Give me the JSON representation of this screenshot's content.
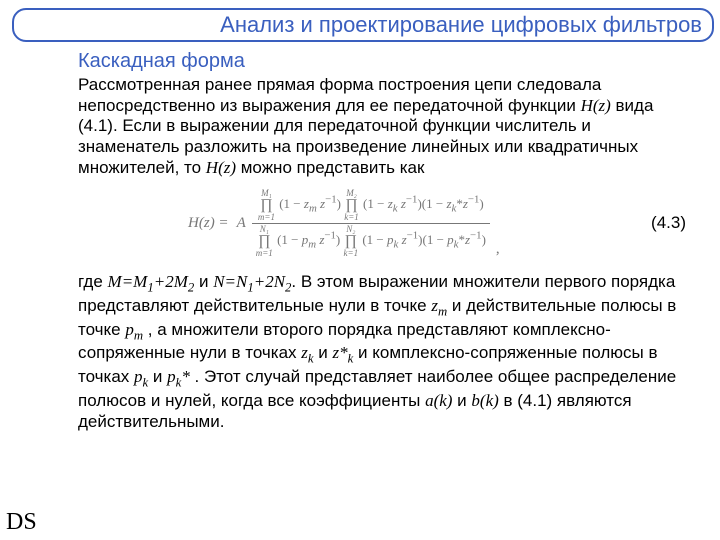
{
  "colors": {
    "accent": "#3a5fbf",
    "text": "#000000",
    "formula": "#777777",
    "background": "#ffffff"
  },
  "title": "Анализ и проектирование цифровых фильтров",
  "section_title": "Каскадная форма",
  "para1_pre": "Рассмотренная ранее прямая форма построения цепи следовала непосредственно из выражения для ее передаточной функции ",
  "para1_hz": "H(z)",
  "para1_mid": " вида (4.1). Если в выражении для передаточной функции числитель и знаменатель разложить на произведение линейных или квадратичных множителей, то ",
  "para1_hz2": "H(z)",
  "para1_end": " можно представить как",
  "eq_label": "(4.3)",
  "formula": {
    "lhs": "H(z) = A",
    "num_p1_top": "M₁",
    "num_p1_bot": "m=1",
    "num_t1": "(1 − z_m z⁻¹)",
    "num_p2_top": "M₂",
    "num_p2_bot": "k=1",
    "num_t2": "(1 − z_k z⁻¹)(1 − z_k* z⁻¹)",
    "den_p1_top": "N₁",
    "den_p1_bot": "m=1",
    "den_t1": "(1 − p_m z⁻¹)",
    "den_p2_top": "N₂",
    "den_p2_bot": "k=1",
    "den_t2": "(1 − p_k z⁻¹)(1 − p_k* z⁻¹)"
  },
  "p2_a": "где ",
  "p2_M": "M=M",
  "p2_M1": "1",
  "p2_M_plus": "+2M",
  "p2_M2": "2",
  "p2_and": " и ",
  "p2_N": "N=N",
  "p2_N1": "1",
  "p2_N_plus": "+2N",
  "p2_N2": "2",
  "p2_b": ". В этом выражении множители первого порядка представляют действительные нули в точке ",
  "p2_zm": "z",
  "p2_zm_sub": "m",
  "p2_c": " и действительные полюсы в точке ",
  "p2_pm": "p",
  "p2_pm_sub": "m",
  "p2_d": " , а множители второго порядка представляют комплексно-сопряженные нули в точках ",
  "p2_zk": "z",
  "p2_zk_sub": "k",
  "p2_e": " и ",
  "p2_zks": "z*",
  "p2_zks_sub": "k",
  "p2_f": " и комплексно-сопряженные полюсы в точках ",
  "p2_pk": "p",
  "p2_pk_sub": "k",
  "p2_g": " и ",
  "p2_pks": "p",
  "p2_pks_sub": "k",
  "p2_pks_sup": "*",
  "p2_h": " . Этот случай представляет наиболее общее распределение полюсов и нулей, когда все коэффициенты ",
  "p2_ak": "a(k)",
  "p2_i": " и ",
  "p2_bk": "b(k)",
  "p2_j": " в (4.1) являются действительными.",
  "footer": "DS"
}
